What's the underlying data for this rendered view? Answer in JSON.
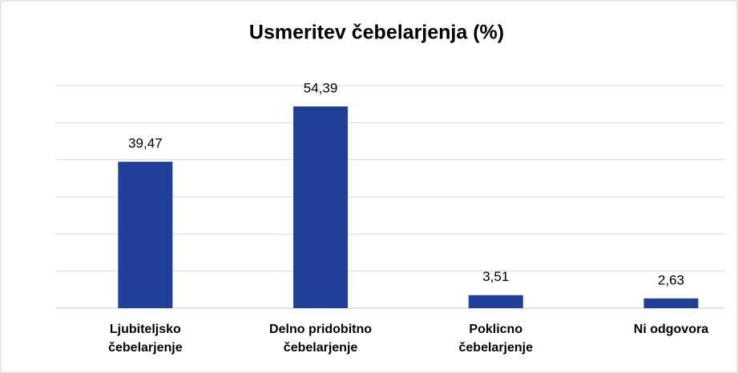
{
  "chart_data": {
    "type": "bar",
    "title": "Usmeritev čebelarjenja (%)",
    "categories": [
      "Ljubiteljsko\nčebelarjenje",
      "Delno pridobitno\nčebelarjenje",
      "Poklicno\nčebelarjenje",
      "Ni odgovora"
    ],
    "values": [
      39.47,
      54.39,
      3.51,
      2.63
    ],
    "value_labels": [
      "39,47",
      "54,39",
      "3,51",
      "2,63"
    ],
    "color": "#1f3f99",
    "ylim": [
      0,
      60
    ],
    "yticks": [
      0,
      10,
      20,
      30,
      40,
      50,
      60
    ],
    "grid": true
  }
}
